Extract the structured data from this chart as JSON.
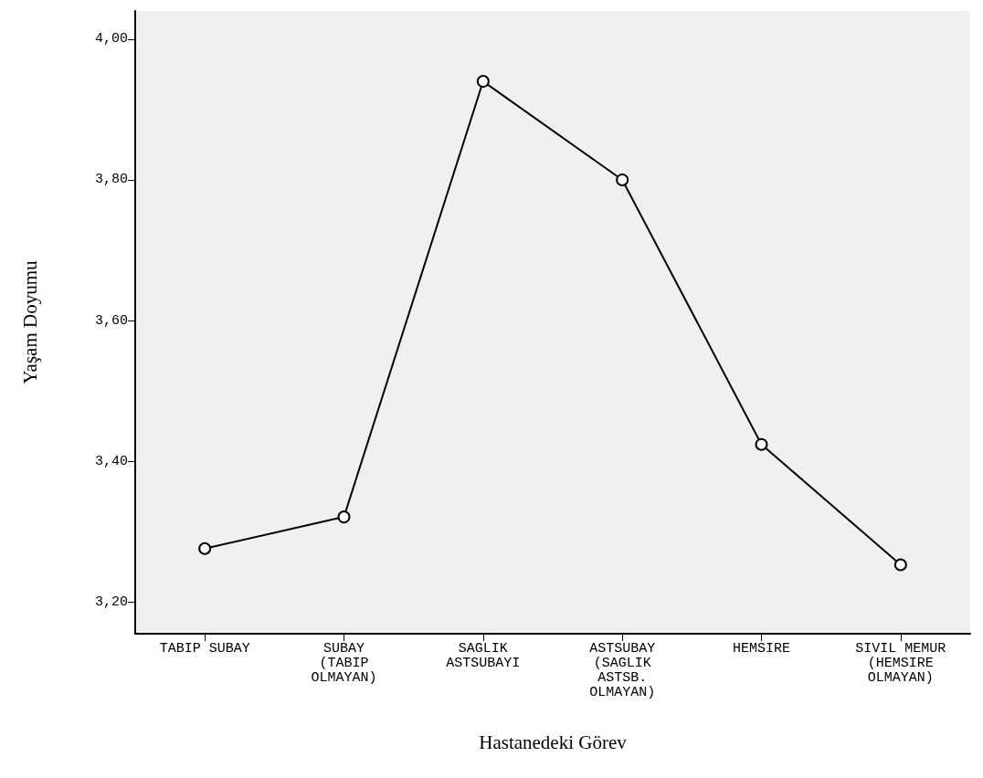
{
  "chart_data": {
    "type": "line",
    "xlabel": "Hastanedeki Görev",
    "ylabel": "Yaşam Doyumu",
    "categories": [
      "TABIP SUBAY",
      "SUBAY\n(TABIP\nOLMAYAN)",
      "SAGLIK\nASTSUBAYI",
      "ASTSUBAY\n(SAGLIK\nASTSB.\nOLMAYAN)",
      "HEMSIRE",
      "SIVIL MEMUR\n(HEMSIRE\nOLMAYAN)"
    ],
    "series": [
      {
        "color": "#000000",
        "values": [
          3.276,
          3.321,
          3.94,
          3.8,
          3.424,
          3.253
        ]
      }
    ],
    "ylim": [
      3.155,
      4.04
    ],
    "yticks": [
      {
        "value": 3.2,
        "label": "3,20"
      },
      {
        "value": 3.4,
        "label": "3,40"
      },
      {
        "value": 3.6,
        "label": "3,60"
      },
      {
        "value": 3.8,
        "label": "3,80"
      },
      {
        "value": 4.0,
        "label": "4,00"
      }
    ],
    "grid": false,
    "marker": "circle",
    "line_style": "solid"
  }
}
